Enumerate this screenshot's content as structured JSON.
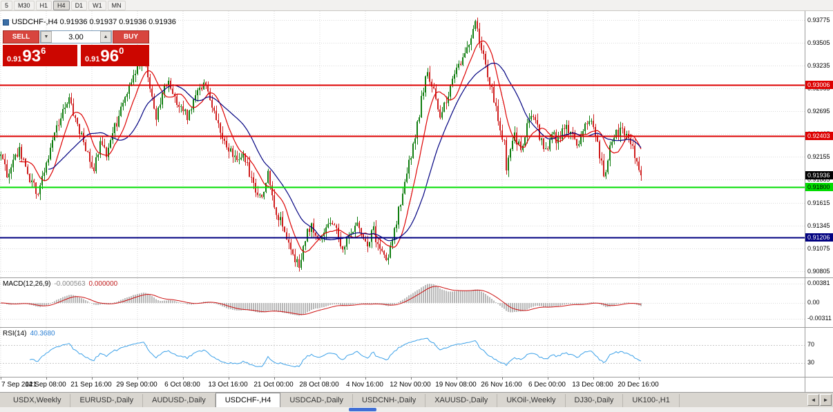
{
  "icons": {
    "volume_down": "▼",
    "volume_up": "▲",
    "tab_scroll_left": "◄",
    "tab_scroll_right": "►"
  },
  "toolbar": {
    "timeframes": [
      "5",
      "M30",
      "H1",
      "H4",
      "D1",
      "W1",
      "MN"
    ],
    "active_timeframe": "H4"
  },
  "chart_info": {
    "title": "USDCHF-,H4  0.91936 0.91937 0.91936 0.91936"
  },
  "trade_panel": {
    "sell_label": "SELL",
    "buy_label": "BUY",
    "volume": "3.00",
    "sell_price": {
      "prefix": "0.91",
      "big": "93",
      "sup": "6"
    },
    "buy_price": {
      "prefix": "0.91",
      "big": "96",
      "sup": "0"
    }
  },
  "indicators": {
    "macd_name": "MACD(12,26,9)",
    "macd_main_value": "-0.000563",
    "macd_signal_value": "0.000000",
    "rsi_name": "RSI(14)",
    "rsi_value": "40.3680"
  },
  "time_axis": {
    "labels": [
      "7 Sep 2021",
      "14 Sep 08:00",
      "21 Sep 16:00",
      "29 Sep 00:00",
      "6 Oct 08:00",
      "13 Oct 16:00",
      "21 Oct 00:00",
      "28 Oct 08:00",
      "4 Nov 16:00",
      "12 Nov 00:00",
      "19 Nov 08:00",
      "26 Nov 16:00",
      "6 Dec 00:00",
      "13 Dec 08:00",
      "20 Dec 16:00"
    ]
  },
  "tabs": {
    "items": [
      "USDX,Weekly",
      "EURUSD-,Daily",
      "AUDUSD-,Daily",
      "USDCHF-,H4",
      "USDCAD-,Daily",
      "USDCNH-,Daily",
      "XAUUSD-,Daily",
      "UKOil-,Weekly",
      "DJ30-,Daily",
      "UK100-,H1"
    ],
    "active_index": 3
  },
  "chart_data": {
    "type": "candlestick",
    "symbol": "USDCHF-",
    "timeframe": "H4",
    "bid": 0.91936,
    "ask": 0.9196,
    "candle_up_color": "#0f7d0f",
    "candle_down_color": "#cf1d1d",
    "grid_color": "#d9d9d9",
    "price_scale_labels": [
      0.93775,
      0.93505,
      0.93235,
      0.92965,
      0.92695,
      0.92425,
      0.92155,
      0.91885,
      0.91615,
      0.91345,
      0.91075,
      0.90805
    ],
    "price": {
      "total_candles": 310,
      "y_min": 0.9073,
      "y_max": 0.9383,
      "anchors": [
        [
          0,
          0.9213
        ],
        [
          3,
          0.9196
        ],
        [
          6,
          0.9209
        ],
        [
          9,
          0.9225
        ],
        [
          12,
          0.9199
        ],
        [
          15,
          0.9184
        ],
        [
          18,
          0.9171
        ],
        [
          21,
          0.9199
        ],
        [
          24,
          0.9224
        ],
        [
          27,
          0.925
        ],
        [
          30,
          0.9267
        ],
        [
          33,
          0.9281
        ],
        [
          36,
          0.9263
        ],
        [
          39,
          0.9241
        ],
        [
          42,
          0.9217
        ],
        [
          45,
          0.9202
        ],
        [
          48,
          0.9233
        ],
        [
          51,
          0.9221
        ],
        [
          54,
          0.9243
        ],
        [
          57,
          0.9263
        ],
        [
          60,
          0.9288
        ],
        [
          63,
          0.9306
        ],
        [
          66,
          0.9323
        ],
        [
          69,
          0.9329
        ],
        [
          72,
          0.9301
        ],
        [
          75,
          0.9263
        ],
        [
          78,
          0.9289
        ],
        [
          81,
          0.9304
        ],
        [
          84,
          0.9289
        ],
        [
          87,
          0.9271
        ],
        [
          90,
          0.9263
        ],
        [
          93,
          0.9282
        ],
        [
          96,
          0.9293
        ],
        [
          99,
          0.9301
        ],
        [
          102,
          0.9277
        ],
        [
          105,
          0.9253
        ],
        [
          108,
          0.9236
        ],
        [
          111,
          0.9223
        ],
        [
          114,
          0.9207
        ],
        [
          117,
          0.9219
        ],
        [
          120,
          0.9197
        ],
        [
          123,
          0.9179
        ],
        [
          126,
          0.9169
        ],
        [
          129,
          0.9193
        ],
        [
          132,
          0.9156
        ],
        [
          135,
          0.9141
        ],
        [
          138,
          0.9121
        ],
        [
          141,
          0.9099
        ],
        [
          144,
          0.9089
        ],
        [
          147,
          0.9119
        ],
        [
          150,
          0.9136
        ],
        [
          153,
          0.9113
        ],
        [
          156,
          0.9121
        ],
        [
          159,
          0.9141
        ],
        [
          162,
          0.9127
        ],
        [
          165,
          0.9109
        ],
        [
          168,
          0.9123
        ],
        [
          171,
          0.9137
        ],
        [
          174,
          0.9123
        ],
        [
          177,
          0.9113
        ],
        [
          180,
          0.9129
        ],
        [
          183,
          0.9103
        ],
        [
          186,
          0.9096
        ],
        [
          189,
          0.9113
        ],
        [
          192,
          0.9151
        ],
        [
          195,
          0.9191
        ],
        [
          198,
          0.9219
        ],
        [
          201,
          0.9253
        ],
        [
          204,
          0.9297
        ],
        [
          206,
          0.9319
        ],
        [
          209,
          0.9291
        ],
        [
          212,
          0.9263
        ],
        [
          215,
          0.9283
        ],
        [
          218,
          0.9309
        ],
        [
          221,
          0.9321
        ],
        [
          224,
          0.9339
        ],
        [
          227,
          0.9361
        ],
        [
          229,
          0.9373
        ],
        [
          231,
          0.9353
        ],
        [
          234,
          0.9323
        ],
        [
          237,
          0.9296
        ],
        [
          240,
          0.9259
        ],
        [
          243,
          0.923
        ],
        [
          244,
          0.92
        ],
        [
          246,
          0.9226
        ],
        [
          248,
          0.9239
        ],
        [
          251,
          0.9226
        ],
        [
          254,
          0.9251
        ],
        [
          257,
          0.9263
        ],
        [
          260,
          0.9241
        ],
        [
          263,
          0.9223
        ],
        [
          266,
          0.9243
        ],
        [
          269,
          0.9233
        ],
        [
          272,
          0.9251
        ],
        [
          275,
          0.9241
        ],
        [
          278,
          0.9229
        ],
        [
          281,
          0.9249
        ],
        [
          284,
          0.9259
        ],
        [
          287,
          0.9243
        ],
        [
          290,
          0.9206
        ],
        [
          291,
          0.919
        ],
        [
          293,
          0.9216
        ],
        [
          296,
          0.9238
        ],
        [
          299,
          0.925
        ],
        [
          302,
          0.9244
        ],
        [
          305,
          0.9224
        ],
        [
          307,
          0.9208
        ],
        [
          309,
          0.91936
        ]
      ]
    },
    "hlines": [
      {
        "value": 0.93006,
        "color": "#dd0000",
        "width": 2,
        "label": "0.93006",
        "text": "#ffffff"
      },
      {
        "value": 0.92403,
        "color": "#dd0000",
        "width": 2,
        "label": "0.92403",
        "text": "#ffffff"
      },
      {
        "value": 0.918,
        "color": "#00dd00",
        "width": 2,
        "label": "0.91800",
        "text": "#000000"
      },
      {
        "value": 0.91206,
        "color": "#000080",
        "width": 2,
        "label": "0.91206",
        "text": "#ffffff"
      }
    ],
    "bid_marker": {
      "value": 0.91936,
      "label": "0.91936",
      "color": "#000000",
      "text": "#ffffff"
    },
    "moving_averages": [
      {
        "period": 10,
        "color": "#dd0000"
      },
      {
        "period": 24,
        "color": "#000080"
      }
    ],
    "macd": {
      "fast": 12,
      "slow": 26,
      "signal": 9,
      "scale_labels": [
        "0.00381",
        "0.00",
        "-0.00311"
      ],
      "scale_values": [
        0.00381,
        0,
        -0.00311
      ],
      "histogram_color": "#b8b8b8",
      "signal_color": "#cc1111"
    },
    "rsi": {
      "period": 14,
      "levels": [
        70,
        30
      ],
      "color": "#3aa0e8",
      "current": 40.368
    }
  }
}
